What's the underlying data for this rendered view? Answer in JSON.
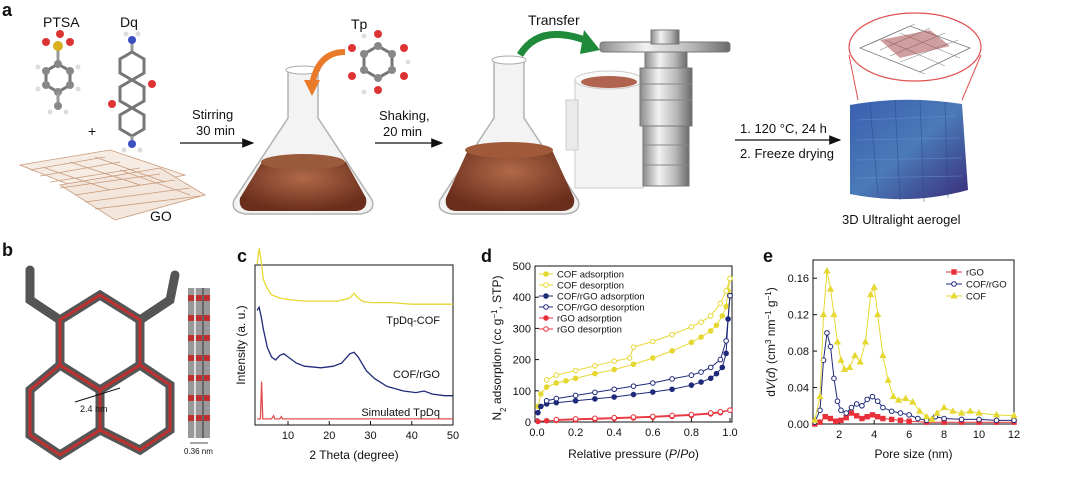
{
  "panel_a": {
    "label": "a",
    "ptsa": "PTSA",
    "dq": "Dq",
    "plus": "+",
    "go": "GO",
    "tp": "Tp",
    "step1_line1": "Stirring",
    "step1_line2": "30 min",
    "step2_line1": "Shaking,",
    "step2_line2": "20 min",
    "transfer": "Transfer",
    "step3_line1": "1. 120 °C, 24 h",
    "step3_line2": "2. Freeze drying",
    "product": "3D Ultralight aerogel"
  },
  "panel_b": {
    "label": "b",
    "pore_size": "2.4 nm",
    "spacing": "0.36 nm"
  },
  "colors": {
    "cof_yellow": "#e6d832",
    "cofrgo_navy": "#1f2a7a",
    "rgo_red": "#e8303a",
    "simulated_red": "#e05050",
    "flask_brown": "#8a4a30",
    "arrow_orange": "#e87a2a",
    "arrow_green": "#1e8a3a"
  },
  "chart_data": [
    {
      "label": "c",
      "type": "line",
      "xlabel": "2 Theta (degree)",
      "ylabel": "Intensity (a. u.)",
      "xlim": [
        2,
        50
      ],
      "xticks": [
        10,
        20,
        30,
        40,
        50
      ],
      "series": [
        {
          "name": "TpDq-COF",
          "color": "#e6d832",
          "x": [
            2.5,
            3,
            3.5,
            4,
            5,
            6,
            8,
            10,
            14,
            18,
            22,
            25,
            26,
            27,
            28,
            30,
            35,
            40,
            45,
            50
          ],
          "y": [
            1.02,
            1.12,
            1.04,
            0.92,
            0.86,
            0.82,
            0.8,
            0.79,
            0.78,
            0.78,
            0.78,
            0.8,
            0.83,
            0.8,
            0.78,
            0.77,
            0.77,
            0.76,
            0.76,
            0.76
          ]
        },
        {
          "name": "COF/rGO",
          "color": "#1f2a7a",
          "x": [
            2.5,
            3,
            3.5,
            4,
            5,
            6,
            7,
            8,
            9,
            10,
            12,
            14,
            18,
            21,
            23,
            25,
            26,
            27,
            29,
            31,
            34,
            38,
            41,
            43,
            45,
            48,
            50
          ],
          "y": [
            0.72,
            0.74,
            0.68,
            0.6,
            0.48,
            0.42,
            0.4,
            0.43,
            0.44,
            0.42,
            0.38,
            0.36,
            0.35,
            0.36,
            0.38,
            0.44,
            0.45,
            0.42,
            0.33,
            0.28,
            0.23,
            0.2,
            0.19,
            0.2,
            0.18,
            0.17,
            0.17
          ]
        },
        {
          "name": "Simulated TpDq",
          "color": "#e05050",
          "x": [
            2.5,
            3.3,
            3.6,
            3.9,
            6,
            6.5,
            6.8,
            8,
            8.4,
            8.7,
            12,
            50
          ],
          "y": [
            0.02,
            0.02,
            0.26,
            0.02,
            0.02,
            0.04,
            0.02,
            0.02,
            0.035,
            0.02,
            0.02,
            0.02
          ]
        }
      ]
    },
    {
      "label": "d",
      "type": "line",
      "xlabel": "Relative pressure (P/Po)",
      "xlabel_parts": [
        "Relative pressure (",
        "P",
        "/",
        "Po",
        ")"
      ],
      "ylabel": "N2 adsorption (cc g−1, STP)",
      "ylabel_parts": [
        "N",
        "2",
        " adsorption (cc g",
        "−1",
        ", STP)"
      ],
      "xlim": [
        0,
        1.0
      ],
      "ylim": [
        0,
        500
      ],
      "xticks": [
        "0.0",
        "0.2",
        "0.4",
        "0.6",
        "0.8",
        "1.0"
      ],
      "yticks": [
        0,
        100,
        200,
        300,
        400,
        500
      ],
      "series": [
        {
          "name": "COF adsorption",
          "color": "#e6d832",
          "filled": true,
          "x": [
            0.005,
            0.02,
            0.05,
            0.1,
            0.15,
            0.2,
            0.3,
            0.4,
            0.5,
            0.6,
            0.7,
            0.8,
            0.85,
            0.9,
            0.93,
            0.96,
            0.98,
            0.99,
            1.0
          ],
          "y": [
            50,
            90,
            112,
            125,
            132,
            140,
            155,
            168,
            185,
            205,
            228,
            255,
            272,
            292,
            310,
            340,
            370,
            420,
            460
          ]
        },
        {
          "name": "COF desorption",
          "color": "#e6d832",
          "filled": false,
          "x": [
            1.0,
            0.98,
            0.95,
            0.9,
            0.85,
            0.8,
            0.7,
            0.6,
            0.5,
            0.48,
            0.4,
            0.3,
            0.2,
            0.1,
            0.05
          ],
          "y": [
            460,
            420,
            380,
            340,
            320,
            305,
            280,
            258,
            240,
            205,
            195,
            180,
            165,
            150,
            135
          ]
        },
        {
          "name": "COF/rGO adsorption",
          "color": "#1f2a7a",
          "filled": true,
          "x": [
            0.005,
            0.02,
            0.05,
            0.1,
            0.2,
            0.3,
            0.4,
            0.5,
            0.6,
            0.7,
            0.8,
            0.85,
            0.9,
            0.93,
            0.96,
            0.98,
            0.99,
            1.0
          ],
          "y": [
            30,
            50,
            58,
            62,
            68,
            74,
            80,
            88,
            96,
            105,
            118,
            128,
            140,
            155,
            175,
            220,
            330,
            405
          ]
        },
        {
          "name": "COF/rGO desorption",
          "color": "#1f2a7a",
          "filled": false,
          "x": [
            1.0,
            0.98,
            0.95,
            0.9,
            0.85,
            0.8,
            0.7,
            0.6,
            0.5,
            0.4,
            0.3,
            0.2,
            0.1,
            0.05
          ],
          "y": [
            405,
            260,
            200,
            175,
            160,
            150,
            138,
            125,
            115,
            105,
            95,
            85,
            75,
            68
          ]
        },
        {
          "name": "rGO adsorption",
          "color": "#e8303a",
          "filled": true,
          "x": [
            0.005,
            0.05,
            0.1,
            0.2,
            0.3,
            0.4,
            0.5,
            0.6,
            0.7,
            0.8,
            0.9,
            0.95,
            1.0
          ],
          "y": [
            2,
            4,
            5,
            7,
            9,
            11,
            13,
            15,
            18,
            21,
            26,
            30,
            38
          ]
        },
        {
          "name": "rGO desorption",
          "color": "#e8303a",
          "filled": false,
          "x": [
            1.0,
            0.95,
            0.9,
            0.8,
            0.7,
            0.6,
            0.5,
            0.4,
            0.3,
            0.2,
            0.1
          ],
          "y": [
            38,
            33,
            29,
            24,
            21,
            18,
            16,
            14,
            12,
            10,
            8
          ]
        }
      ]
    },
    {
      "label": "e",
      "type": "line",
      "xlabel": "Pore size (nm)",
      "ylabel": "dV(d) (cm3 nm−1 g−1)",
      "ylabel_parts": [
        "d",
        "V",
        "(",
        "d",
        ") (cm",
        "3",
        " nm",
        "−1",
        " g",
        "−1",
        ")"
      ],
      "xlim": [
        0.5,
        12
      ],
      "ylim": [
        0,
        0.18
      ],
      "xticks": [
        2,
        4,
        6,
        8,
        10,
        12
      ],
      "yticks": [
        "0.00",
        "0.04",
        "0.08",
        "0.12",
        "0.16"
      ],
      "series": [
        {
          "name": "rGO",
          "color": "#e8303a",
          "marker": "square",
          "x": [
            0.6,
            0.9,
            1.2,
            1.5,
            1.8,
            2.1,
            2.4,
            2.7,
            3.0,
            3.3,
            3.6,
            3.9,
            4.2,
            4.5,
            5,
            5.5,
            6,
            7,
            8,
            9,
            10,
            11,
            12
          ],
          "y": [
            0.0,
            0.002,
            0.008,
            0.006,
            0.003,
            0.004,
            0.007,
            0.012,
            0.009,
            0.006,
            0.008,
            0.01,
            0.008,
            0.006,
            0.005,
            0.004,
            0.003,
            0.002,
            0.002,
            0.002,
            0.002,
            0.002,
            0.002
          ]
        },
        {
          "name": "COF/rGO",
          "color": "#1f2a7a",
          "marker": "circle",
          "x": [
            0.6,
            0.9,
            1.1,
            1.3,
            1.5,
            1.7,
            1.9,
            2.1,
            2.4,
            2.7,
            3.0,
            3.3,
            3.6,
            3.9,
            4.2,
            4.5,
            5,
            5.5,
            6,
            6.5,
            7,
            7.5,
            8,
            9,
            10,
            11,
            12
          ],
          "y": [
            0.002,
            0.015,
            0.07,
            0.1,
            0.085,
            0.05,
            0.025,
            0.015,
            0.012,
            0.018,
            0.022,
            0.02,
            0.027,
            0.03,
            0.025,
            0.018,
            0.014,
            0.012,
            0.01,
            0.006,
            0.004,
            0.008,
            0.006,
            0.005,
            0.005,
            0.004,
            0.004
          ]
        },
        {
          "name": "COF",
          "color": "#e6d832",
          "marker": "triangle",
          "x": [
            0.6,
            0.9,
            1.1,
            1.3,
            1.5,
            1.7,
            1.9,
            2.1,
            2.3,
            2.6,
            2.9,
            3.2,
            3.5,
            3.8,
            4.0,
            4.2,
            4.5,
            4.8,
            5.1,
            5.4,
            5.8,
            6.2,
            6.6,
            7.0,
            7.3,
            7.6,
            8,
            8.5,
            9,
            9.5,
            10,
            11,
            12
          ],
          "y": [
            0.004,
            0.03,
            0.12,
            0.168,
            0.148,
            0.12,
            0.09,
            0.07,
            0.06,
            0.062,
            0.075,
            0.068,
            0.09,
            0.142,
            0.15,
            0.12,
            0.075,
            0.048,
            0.03,
            0.026,
            0.028,
            0.024,
            0.014,
            0.008,
            0.005,
            0.012,
            0.018,
            0.014,
            0.012,
            0.014,
            0.012,
            0.01,
            0.009
          ]
        }
      ]
    }
  ]
}
